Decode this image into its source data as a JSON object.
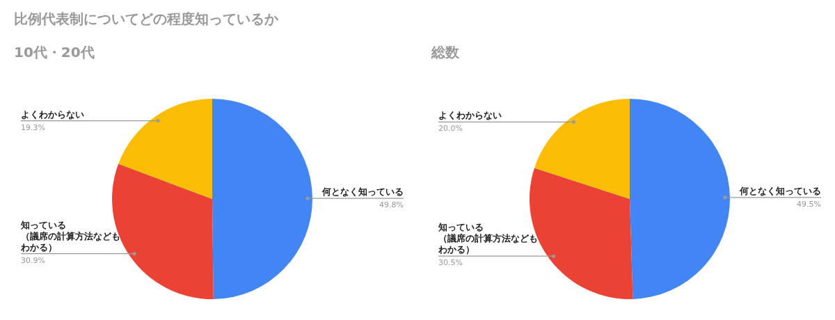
{
  "chart_data": [
    {
      "type": "pie",
      "title": "比例代表制についてどの程度知っているか",
      "subtitle": "10代・20代",
      "categories": [
        "何となく知っている",
        "知っている（議席の計算方法などもわかる）",
        "よくわからない"
      ],
      "values": [
        49.8,
        30.9,
        19.3
      ],
      "value_labels": [
        "49.8%",
        "30.9%",
        "19.3%"
      ],
      "colors": [
        "#4285f4",
        "#ea4335",
        "#fbbc04"
      ],
      "legend": false
    },
    {
      "type": "pie",
      "subtitle": "総数",
      "categories": [
        "何となく知っている",
        "知っている（議席の計算方法などもわかる）",
        "よくわからない"
      ],
      "values": [
        49.5,
        30.5,
        20.0
      ],
      "value_labels": [
        "49.5%",
        "30.5%",
        "20.0%"
      ],
      "colors": [
        "#4285f4",
        "#ea4335",
        "#fbbc04"
      ],
      "legend": false
    }
  ]
}
